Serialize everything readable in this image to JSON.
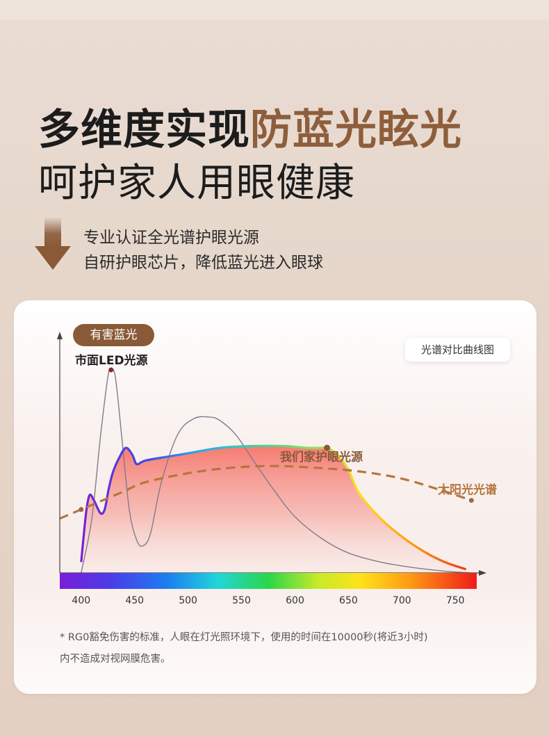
{
  "headline": {
    "line1_plain": "多维度实现",
    "line1_accent": "防蓝光眩光",
    "line2": "呵护家人用眼健康"
  },
  "subtext": {
    "line1": "专业认证全光谱护眼光源",
    "line2": "自研护眼芯片，降低蓝光进入眼球"
  },
  "icons": [
    "arrow-down-icon"
  ],
  "colors": {
    "accent": "#8e5e3c",
    "badge": "#8a5a38",
    "sun_dash": "#b5763f"
  },
  "chart_labels": {
    "badge": "有害蓝光",
    "led": "市面LED光源",
    "compare": "光谱对比曲线图",
    "ours": "我们家护眼光源",
    "sun": "太阳光光谱"
  },
  "chart_data": {
    "type": "line",
    "x_ticks": [
      400,
      450,
      500,
      550,
      600,
      650,
      700,
      750
    ],
    "xlim": [
      380,
      770
    ],
    "x_unit": "nm",
    "series": [
      {
        "name": "市面LED光源",
        "x": [
          400,
          410,
          418,
          425,
          428,
          432,
          438,
          445,
          452,
          458,
          465,
          475,
          490,
          505,
          520,
          530,
          545,
          560,
          580,
          600,
          625,
          650,
          680,
          710,
          740,
          765
        ],
        "y": [
          0,
          30,
          75,
          108,
          112,
          108,
          75,
          35,
          18,
          15,
          22,
          50,
          76,
          85,
          86,
          84,
          76,
          63,
          46,
          31,
          19,
          11,
          6,
          3,
          1,
          0
        ]
      },
      {
        "name": "我们家护眼光源",
        "x": [
          400,
          402,
          405,
          408,
          412,
          418,
          422,
          426,
          430,
          436,
          442,
          448,
          452,
          460,
          480,
          500,
          530,
          560,
          590,
          610,
          625,
          630,
          640,
          650,
          660,
          680,
          700,
          720,
          740,
          760
        ],
        "y": [
          6,
          18,
          35,
          43,
          40,
          33,
          35,
          47,
          56,
          64,
          69,
          65,
          60,
          62,
          64,
          66,
          69,
          70,
          70,
          69,
          69,
          69,
          65,
          57,
          44,
          30,
          20,
          12,
          6,
          2
        ]
      },
      {
        "name": "太阳光光谱",
        "x": [
          380,
          400,
          420,
          440,
          460,
          500,
          540,
          580,
          620,
          660,
          700,
          740,
          765
        ],
        "y": [
          30,
          35,
          40,
          45,
          50,
          55,
          58,
          59,
          58,
          56,
          52,
          45,
          40
        ]
      }
    ],
    "markers": [
      {
        "series": "市面LED光源",
        "x": 428,
        "y": 112
      },
      {
        "series": "我们家护眼光源",
        "x": 630,
        "y": 69
      },
      {
        "series": "太阳光光谱",
        "x": 400,
        "y": 35
      },
      {
        "series": "太阳光光谱",
        "x": 765,
        "y": 40
      }
    ],
    "annotations": [
      "有害蓝光",
      "光谱对比曲线图"
    ],
    "grid": false
  },
  "footnote": {
    "line1": "* RG0豁免伤害的标准，人眼在灯光照环境下，使用的时间在10000秒(将近3小时)",
    "line2": "内不造成对视网膜危害。"
  }
}
